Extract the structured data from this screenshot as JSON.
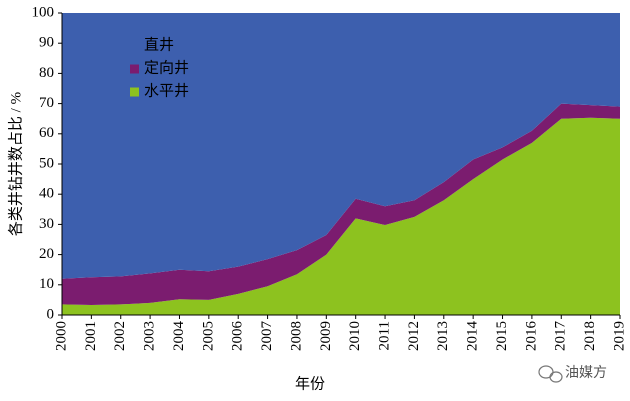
{
  "chart_data": {
    "type": "area",
    "stacked": true,
    "x_label": "年份",
    "y_label": "各类井钻井数占比 / %",
    "categories": [
      "2000",
      "2001",
      "2002",
      "2003",
      "2004",
      "2005",
      "2006",
      "2007",
      "2008",
      "2009",
      "2010",
      "2011",
      "2012",
      "2013",
      "2014",
      "2015",
      "2016",
      "2017",
      "2018",
      "2019"
    ],
    "series": [
      {
        "name": "水平井",
        "color": "#8dc21f",
        "values": [
          3.5,
          3.3,
          3.5,
          4,
          5.2,
          5,
          7,
          9.5,
          13.5,
          20,
          32,
          29.8,
          32.5,
          38,
          45,
          51.5,
          57,
          65,
          65.3,
          65
        ]
      },
      {
        "name": "定向井",
        "color": "#7b1c6f",
        "values": [
          8.5,
          9.2,
          9.3,
          9.8,
          9.8,
          9.5,
          9,
          9,
          8,
          6.5,
          6.5,
          6.2,
          5.5,
          6,
          6.5,
          4,
          4,
          5,
          4.2,
          4
        ]
      },
      {
        "name": "直井",
        "color": "#3d5fae",
        "values": [
          88,
          87.5,
          87.2,
          86.2,
          85,
          85.5,
          84,
          81.5,
          78.5,
          73.5,
          61.5,
          64,
          62,
          56,
          48.5,
          44.5,
          39,
          30,
          30.5,
          31
        ]
      }
    ],
    "legend_order": [
      2,
      1,
      0
    ],
    "ylim": [
      0,
      100
    ],
    "yticks": [
      0,
      10,
      20,
      30,
      40,
      50,
      60,
      70,
      80,
      90,
      100
    ],
    "watermark": "油媒方"
  }
}
